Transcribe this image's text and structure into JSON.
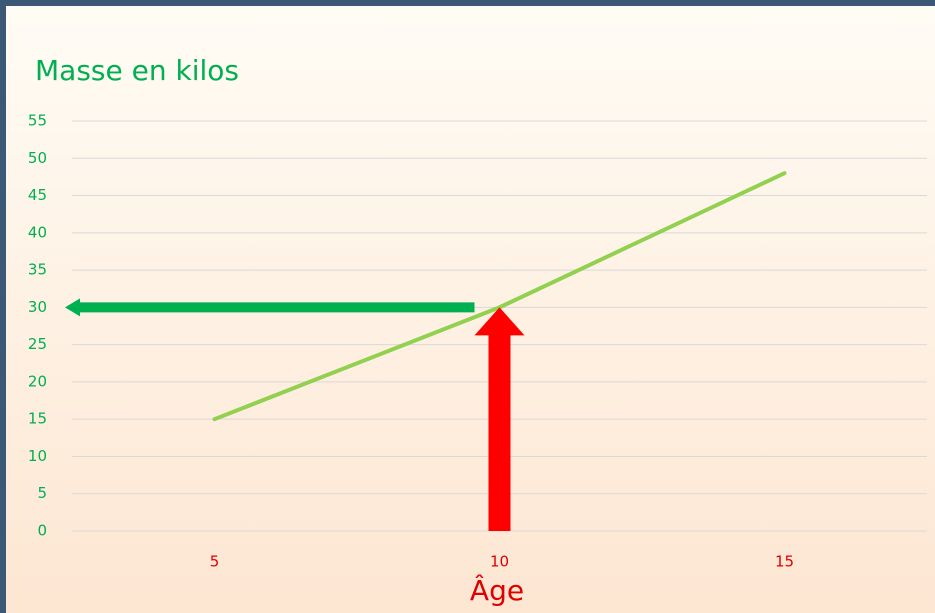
{
  "chart_data": {
    "type": "line",
    "title": "Masse en kilos",
    "x_label": "Âge",
    "x": [
      5,
      10,
      15
    ],
    "series": [
      {
        "color": "#92d050",
        "values": [
          15,
          30,
          48
        ]
      }
    ],
    "xlim": [
      2.5,
      17.5
    ],
    "xticks": [
      5,
      10,
      15
    ],
    "ylim": [
      0,
      55
    ],
    "yticks": [
      0,
      5,
      10,
      15,
      20,
      25,
      30,
      35,
      40,
      45,
      50,
      55
    ],
    "grid": true
  }
}
